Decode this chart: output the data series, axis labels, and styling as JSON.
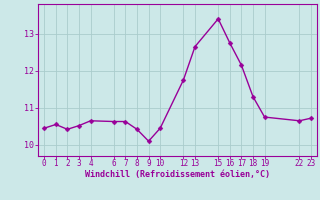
{
  "x_values": [
    0,
    1,
    2,
    3,
    4,
    6,
    7,
    8,
    9,
    10,
    12,
    13,
    15,
    16,
    17,
    18,
    19,
    22,
    23
  ],
  "y_values": [
    10.45,
    10.55,
    10.42,
    10.52,
    10.65,
    10.63,
    10.63,
    10.42,
    10.1,
    10.45,
    11.75,
    12.65,
    13.4,
    12.75,
    12.15,
    11.3,
    10.75,
    10.65,
    10.72
  ],
  "x_tick_positions": [
    0,
    1,
    2,
    3,
    4,
    6,
    7,
    8,
    9,
    10,
    12,
    13,
    15,
    16,
    17,
    18,
    19,
    22,
    23
  ],
  "x_tick_labels": [
    "0",
    "1",
    "2",
    "3",
    "4",
    "6",
    "7",
    "8",
    "9",
    "10",
    "12",
    "13",
    "15",
    "16",
    "17",
    "18",
    "19",
    "22",
    "23"
  ],
  "y_ticks": [
    10,
    11,
    12,
    13
  ],
  "ylim": [
    9.7,
    13.8
  ],
  "xlim": [
    -0.5,
    23.5
  ],
  "xlabel": "Windchill (Refroidissement éolien,°C)",
  "line_color": "#990099",
  "marker_color": "#990099",
  "bg_color": "#cce8e8",
  "grid_color": "#aacccc",
  "axis_color": "#990099",
  "tick_color": "#990099",
  "label_color": "#990099",
  "marker_size": 2.5,
  "line_width": 1.0
}
